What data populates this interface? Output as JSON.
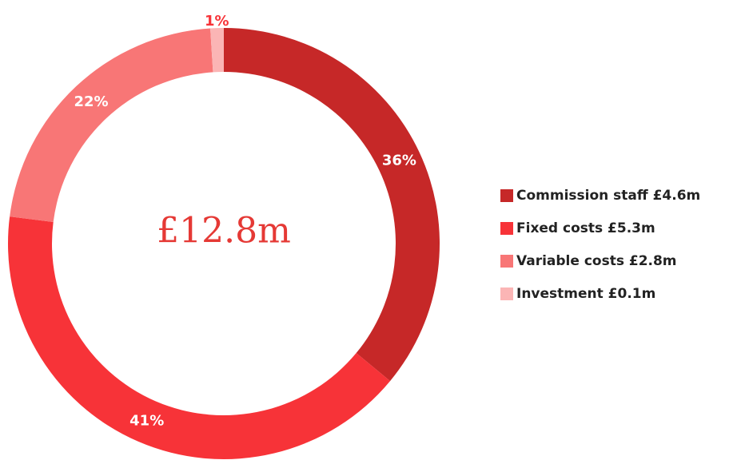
{
  "chart_data": {
    "type": "donut",
    "center_text": "£12.8m",
    "categories": [
      "Commission staff £4.6m",
      "Fixed costs £5.3m",
      "Variable costs £2.8m",
      "Investment £0.1m"
    ],
    "values": [
      36,
      41,
      22,
      1
    ],
    "value_labels": [
      "36%",
      "41%",
      "22%",
      "1%"
    ],
    "colors": [
      "#c62828",
      "#f73338",
      "#f87676",
      "#fbb5b5"
    ],
    "legend": "right"
  }
}
